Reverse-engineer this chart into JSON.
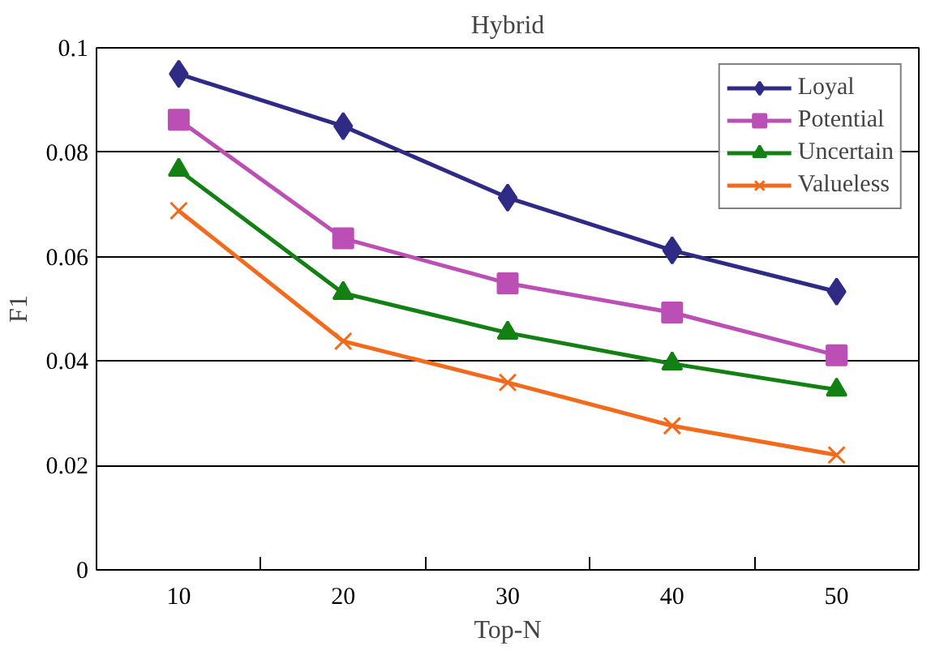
{
  "chart_data": {
    "type": "line",
    "title": "Hybrid",
    "xlabel": "Top-N",
    "ylabel": "F1",
    "categories": [
      "10",
      "20",
      "30",
      "40",
      "50"
    ],
    "series": [
      {
        "name": "Loyal",
        "color": "#2e2a86",
        "marker": "diamond",
        "values": [
          0.095,
          0.085,
          0.0713,
          0.0612,
          0.0533
        ]
      },
      {
        "name": "Potential",
        "color": "#bb4fb5",
        "marker": "square",
        "values": [
          0.0862,
          0.0635,
          0.0549,
          0.0493,
          0.0411
        ]
      },
      {
        "name": "Uncertain",
        "color": "#138013",
        "marker": "triangle",
        "values": [
          0.0766,
          0.053,
          0.0454,
          0.0395,
          0.0345
        ]
      },
      {
        "name": "Valueless",
        "color": "#f26b1d",
        "marker": "cross",
        "values": [
          0.0688,
          0.0438,
          0.0359,
          0.0276,
          0.022
        ]
      }
    ],
    "ylim": [
      0,
      0.1
    ],
    "yticks": [
      0,
      {
        "value": 0.02,
        "label": "0.02"
      },
      {
        "value": 0.04,
        "label": "0.04"
      },
      {
        "value": 0.06,
        "label": "0.06"
      },
      {
        "value": 0.08,
        "label": "0.08"
      },
      {
        "value": 0.1,
        "label": "0.1"
      }
    ],
    "grid": "y",
    "legend": "top right",
    "line_style": "solid"
  }
}
